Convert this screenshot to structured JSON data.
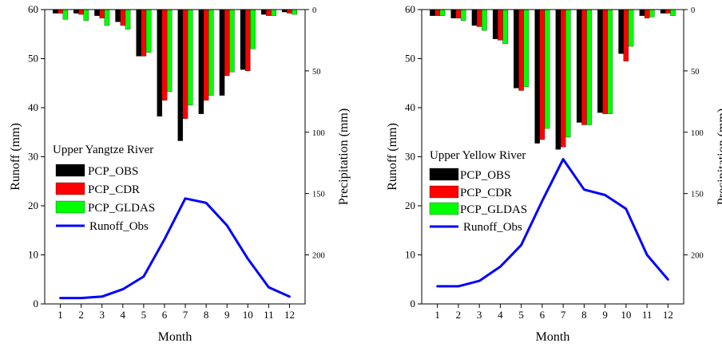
{
  "chart_data": [
    {
      "type": "bar",
      "overlay_type": "line",
      "panel": "left",
      "categories": [
        "1",
        "2",
        "3",
        "4",
        "5",
        "6",
        "7",
        "8",
        "9",
        "10",
        "11",
        "12"
      ],
      "xlabel": "Month",
      "ylabel": "Runoff (mm)",
      "ylabel_right": "Precipitation (mm)",
      "ylim": [
        0,
        60
      ],
      "ylim_right": [
        0,
        240
      ],
      "right_axis_inverted": true,
      "yticks": [
        0,
        10,
        20,
        30,
        40,
        50,
        60
      ],
      "yticks_right": [
        0,
        50,
        100,
        150,
        200
      ],
      "legend_title": "Upper Yangtze River",
      "legend_position": "middle-left",
      "bar_series": [
        {
          "name": "PCP_OBS",
          "color": "#000000",
          "values": [
            3,
            3,
            5,
            10,
            38,
            87,
            107,
            85,
            70,
            49,
            4,
            2
          ]
        },
        {
          "name": "PCP_CDR",
          "color": "#ff0000",
          "values": [
            3,
            4,
            7,
            13,
            38,
            74,
            89,
            74,
            54,
            50,
            5,
            3
          ]
        },
        {
          "name": "PCP_GLDAS",
          "color": "#00ff00",
          "values": [
            8,
            9,
            13,
            16,
            35,
            67,
            78,
            70,
            51,
            32,
            5,
            4
          ]
        }
      ],
      "line_series": [
        {
          "name": "Runoff_Obs",
          "color": "#0000ff",
          "values": [
            1.2,
            1.2,
            1.5,
            3.0,
            5.6,
            13.2,
            21.5,
            20.6,
            16.0,
            9.2,
            3.4,
            1.5
          ]
        }
      ]
    },
    {
      "type": "bar",
      "overlay_type": "line",
      "panel": "right",
      "categories": [
        "1",
        "2",
        "3",
        "4",
        "5",
        "6",
        "7",
        "8",
        "9",
        "10",
        "11",
        "12"
      ],
      "xlabel": "Month",
      "ylabel": "Runoff (mm)",
      "ylabel_right": "Precipitation (mm)",
      "ylim": [
        0,
        60
      ],
      "ylim_right": [
        0,
        240
      ],
      "right_axis_inverted": true,
      "yticks": [
        0,
        10,
        20,
        30,
        40,
        50,
        60
      ],
      "yticks_right": [
        0,
        50,
        100,
        150,
        200
      ],
      "legend_title": "Upper Yellow River",
      "legend_position": "middle-left",
      "bar_series": [
        {
          "name": "PCP_OBS",
          "color": "#000000",
          "values": [
            5,
            7,
            13,
            24,
            64,
            109,
            114,
            92,
            84,
            36,
            5,
            3
          ]
        },
        {
          "name": "PCP_CDR",
          "color": "#ff0000",
          "values": [
            5,
            7,
            14,
            25,
            66,
            106,
            112,
            94,
            85,
            42,
            7,
            3
          ]
        },
        {
          "name": "PCP_GLDAS",
          "color": "#00ff00",
          "values": [
            5,
            9,
            17,
            28,
            63,
            97,
            104,
            94,
            85,
            30,
            6,
            5
          ]
        }
      ],
      "line_series": [
        {
          "name": "Runoff_Obs",
          "color": "#0000ff",
          "values": [
            3.6,
            3.6,
            4.7,
            7.6,
            12.0,
            21.0,
            29.5,
            23.3,
            22.2,
            19.4,
            10.0,
            5.0
          ]
        }
      ]
    }
  ]
}
